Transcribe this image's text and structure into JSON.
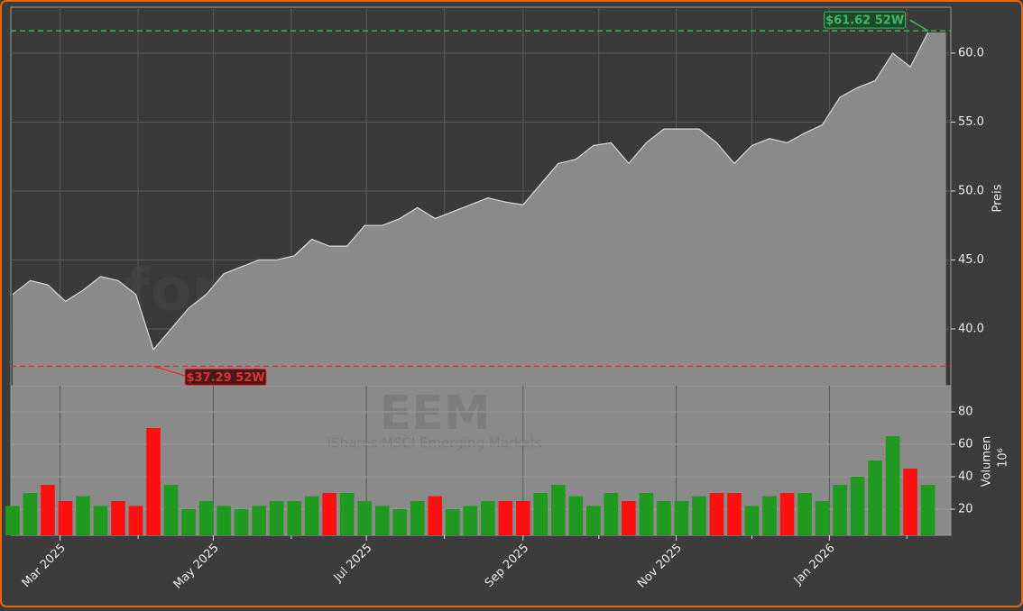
{
  "chart_data": [
    {
      "type": "area",
      "title": "EEM",
      "subtitle": "iShares MSCI Emerging Markets",
      "watermark": "forexsignale.trade",
      "ylabel": "Preis",
      "color": "#8a8a8a",
      "line_color": "#d8d8d8",
      "values": [
        42.5,
        43.5,
        43.2,
        42.0,
        42.8,
        43.8,
        43.5,
        42.5,
        38.5,
        40.0,
        41.5,
        42.5,
        44.0,
        44.5,
        45.0,
        45.0,
        45.3,
        46.5,
        46.0,
        46.0,
        47.5,
        47.5,
        48.0,
        48.8,
        48.0,
        48.5,
        49.0,
        49.5,
        49.2,
        49.0,
        50.5,
        52.0,
        52.3,
        53.3,
        53.5,
        52.0,
        53.5,
        54.5,
        54.5,
        54.5,
        53.5,
        52.0,
        53.3,
        53.8,
        53.5,
        54.2,
        54.8,
        56.8,
        57.5,
        58.0,
        60.0,
        59.0,
        61.5
      ],
      "xlim": [
        -0.1,
        53.3
      ],
      "xticks": [
        {
          "value": 2.7,
          "label": "Mar 2025"
        },
        {
          "value": 11.4,
          "label": "May 2025"
        },
        {
          "value": 20.1,
          "label": "Jul 2025"
        },
        {
          "value": 29.0,
          "label": "Sep 2025"
        },
        {
          "value": 37.7,
          "label": "Nov 2025"
        },
        {
          "value": 46.4,
          "label": "Jan 2026"
        }
      ],
      "xminorticks": [
        7.13,
        15.83,
        24.53,
        33.3,
        42.0,
        50.8
      ],
      "ylim": [
        35.88,
        63.33
      ],
      "yticks": [
        {
          "value": 40,
          "label": "40.0"
        },
        {
          "value": 45,
          "label": "45.0"
        },
        {
          "value": 50,
          "label": "50.0"
        },
        {
          "value": 55,
          "label": "55.0"
        },
        {
          "value": 60,
          "label": "60.0"
        }
      ],
      "grid": true,
      "high": {
        "value": 61.62,
        "label": "$61.62 52W",
        "color": "#3cb95f"
      },
      "low": {
        "value": 37.29,
        "label": "$37.29 52W",
        "color": "#e03030"
      }
    },
    {
      "type": "bar",
      "ylabel": "Volumen",
      "yscale_label": "10⁶",
      "up_color": "#1f9a1f",
      "down_color": "#ff1010",
      "values": [
        22,
        30,
        35,
        25,
        28,
        22,
        25,
        22,
        70,
        35,
        20,
        25,
        22,
        20,
        22,
        25,
        25,
        28,
        30,
        30,
        25,
        22,
        20,
        25,
        28,
        20,
        22,
        25,
        25,
        25,
        30,
        35,
        28,
        22,
        30,
        25,
        30,
        25,
        25,
        28,
        30,
        30,
        22,
        28,
        30,
        30,
        25,
        35,
        40,
        50,
        65,
        45,
        35
      ],
      "ylim": [
        3.9,
        96.1
      ],
      "yticks": [
        20,
        40,
        60,
        80
      ],
      "grid": true
    }
  ]
}
